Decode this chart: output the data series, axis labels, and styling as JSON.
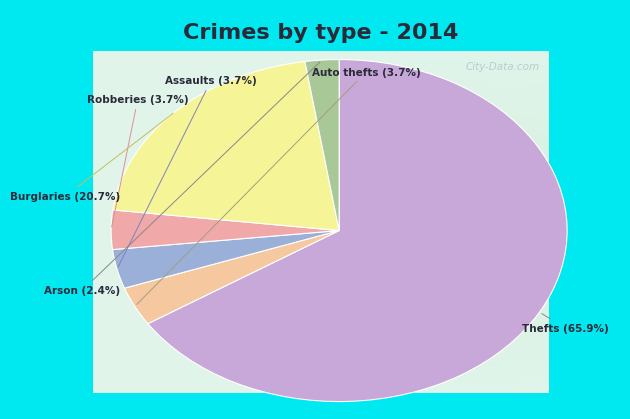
{
  "title": "Crimes by type - 2014",
  "slices": [
    {
      "label": "Thefts (65.9%)",
      "value": 65.9,
      "color": "#c8a8d8"
    },
    {
      "label": "Auto thefts (3.7%)",
      "value": 3.7,
      "color": "#f5c8a0"
    },
    {
      "label": "Assaults (3.7%)",
      "value": 3.7,
      "color": "#9ab0d8"
    },
    {
      "label": "Robberies (3.7%)",
      "value": 3.7,
      "color": "#f0a8a8"
    },
    {
      "label": "Burglaries (20.7%)",
      "value": 20.7,
      "color": "#f5f598"
    },
    {
      "label": "Arson (2.4%)",
      "value": 2.4,
      "color": "#a8c898"
    }
  ],
  "bg_cyan": "#00e8f0",
  "bg_chart": "#d4eed8",
  "title_fontsize": 16,
  "title_color": "#2a2a3a",
  "watermark": "City-Data.com",
  "title_bar_height": 0.105,
  "bottom_bar_height": 0.04
}
